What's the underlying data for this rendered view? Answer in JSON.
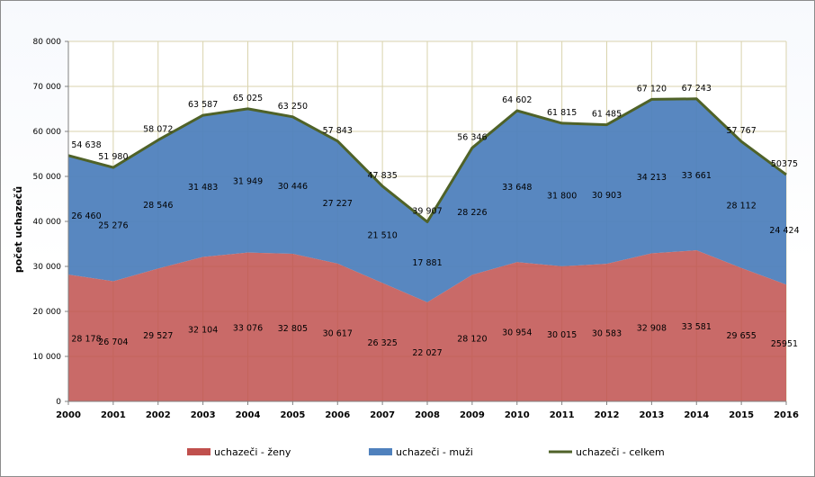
{
  "chart_data": {
    "type": "area",
    "ylabel": "počet uchazečů",
    "ylim": [
      0,
      80000
    ],
    "y_ticks": [
      "0",
      "10 000",
      "20 000",
      "30 000",
      "40 000",
      "50 000",
      "60 000",
      "70 000",
      "80 000"
    ],
    "x": [
      "2000",
      "2001",
      "2002",
      "2003",
      "2004",
      "2005",
      "2006",
      "2007",
      "2008",
      "2009",
      "2010",
      "2011",
      "2012",
      "2013",
      "2014",
      "2015",
      "2016"
    ],
    "series": [
      {
        "name": "uchazeči - ženy",
        "kind": "stacked-area",
        "color": "#c0504d",
        "values": [
          28178,
          26704,
          29527,
          32104,
          33076,
          32805,
          30617,
          26325,
          22027,
          28120,
          30954,
          30015,
          30583,
          32908,
          33581,
          29655,
          25951
        ],
        "labels": [
          "28 178",
          "26 704",
          "29 527",
          "32 104",
          "33 076",
          "32 805",
          "30 617",
          "26 325",
          "22 027",
          "28 120",
          "30 954",
          "30 015",
          "30 583",
          "32 908",
          "33 581",
          "29 655",
          "25951"
        ]
      },
      {
        "name": "uchazeči - muži",
        "kind": "stacked-area",
        "color": "#4f81bd",
        "values": [
          26460,
          25276,
          28546,
          31483,
          31949,
          30446,
          27227,
          21510,
          17881,
          28226,
          33648,
          31800,
          30903,
          34213,
          33661,
          28112,
          24424
        ],
        "labels": [
          "26 460",
          "25 276",
          "28 546",
          "31 483",
          "31 949",
          "30 446",
          "27 227",
          "21 510",
          "17 881",
          "28 226",
          "33 648",
          "31 800",
          "30 903",
          "34 213",
          "33 661",
          "28 112",
          "24 424"
        ]
      },
      {
        "name": "uchazeči - celkem",
        "kind": "line",
        "color": "#4f6228",
        "values": [
          54638,
          51980,
          58072,
          63587,
          65025,
          63250,
          57843,
          47835,
          39907,
          56346,
          64602,
          61815,
          61485,
          67120,
          67243,
          57767,
          50375
        ],
        "labels": [
          "54 638",
          "51 980",
          "58 072",
          "63 587",
          "65 025",
          "63 250",
          "57 843",
          "47 835",
          "39 907",
          "56 346",
          "64 602",
          "61 815",
          "61 485",
          "67 120",
          "67 243",
          "57 767",
          "50375"
        ]
      }
    ],
    "grid": true,
    "legend_position": "bottom"
  }
}
